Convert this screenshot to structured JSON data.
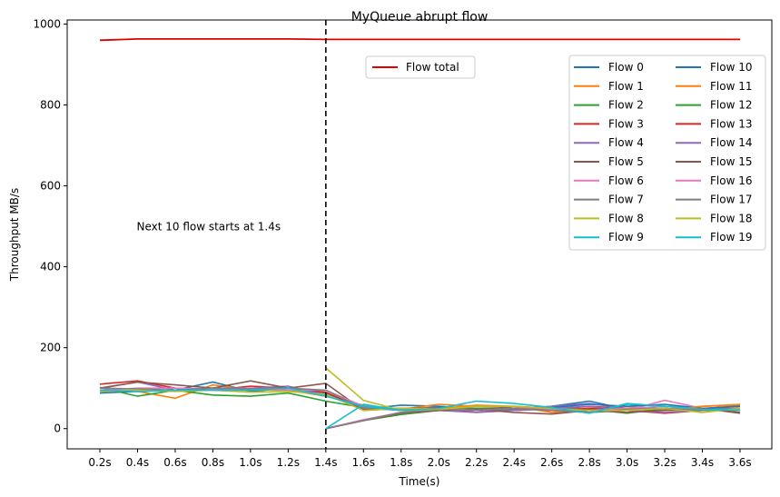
{
  "chart_data": {
    "type": "line",
    "title": "MyQueue abrupt flow",
    "xlabel": "Time(s)",
    "ylabel": "Throughput MB/s",
    "ylim": [
      -50,
      1010
    ],
    "yticks": [
      0,
      200,
      400,
      600,
      800,
      1000
    ],
    "grid": false,
    "categories": [
      "0.2s",
      "0.4s",
      "0.6s",
      "0.8s",
      "1.0s",
      "1.2s",
      "1.4s",
      "1.6s",
      "1.8s",
      "2.0s",
      "2.2s",
      "2.4s",
      "2.6s",
      "2.8s",
      "3.0s",
      "3.2s",
      "3.4s",
      "3.6s"
    ],
    "annotation": {
      "text": "Next 10 flow starts at 1.4s",
      "x": "0.4s",
      "y": 495
    },
    "marker_line": {
      "x": "1.4s",
      "style": "dashed",
      "color": "#000000"
    },
    "total_series": {
      "name": "Flow total",
      "color": "#e00000",
      "values": [
        960,
        963,
        963,
        963,
        963,
        963,
        962,
        962,
        962,
        962,
        962,
        962,
        962,
        962,
        962,
        962,
        962,
        962
      ]
    },
    "total_legend_position": "upper-center",
    "legend_position": "upper-right",
    "series": [
      {
        "name": "Flow 0",
        "color": "#1f77b4",
        "values": [
          88,
          92,
          95,
          115,
          92,
          100,
          88,
          48,
          58,
          55,
          50,
          45,
          55,
          68,
          48,
          55,
          50,
          45
        ]
      },
      {
        "name": "Flow 1",
        "color": "#ff7f0e",
        "values": [
          95,
          92,
          75,
          108,
          96,
          95,
          80,
          58,
          48,
          60,
          55,
          50,
          45,
          50,
          55,
          45,
          55,
          58
        ]
      },
      {
        "name": "Flow 2",
        "color": "#2ca02c",
        "values": [
          102,
          80,
          95,
          83,
          80,
          88,
          68,
          52,
          45,
          50,
          50,
          45,
          50,
          40,
          45,
          50,
          45,
          50
        ]
      },
      {
        "name": "Flow 3",
        "color": "#d62728",
        "values": [
          110,
          118,
          100,
          95,
          105,
          100,
          90,
          48,
          50,
          52,
          45,
          50,
          48,
          55,
          50,
          45,
          50,
          55
        ]
      },
      {
        "name": "Flow 4",
        "color": "#9467bd",
        "values": [
          100,
          115,
          95,
          100,
          100,
          105,
          82,
          52,
          45,
          50,
          40,
          50,
          55,
          62,
          50,
          45,
          50,
          45
        ]
      },
      {
        "name": "Flow 5",
        "color": "#8c564b",
        "values": [
          100,
          115,
          108,
          100,
          118,
          100,
          112,
          45,
          50,
          48,
          45,
          55,
          50,
          45,
          50,
          45,
          50,
          40
        ]
      },
      {
        "name": "Flow 6",
        "color": "#e377c2",
        "values": [
          95,
          100,
          100,
          98,
          100,
          95,
          95,
          55,
          45,
          50,
          50,
          45,
          48,
          50,
          45,
          70,
          50,
          45
        ]
      },
      {
        "name": "Flow 7",
        "color": "#7f7f7f",
        "values": [
          100,
          98,
          95,
          100,
          98,
          100,
          95,
          50,
          50,
          45,
          50,
          50,
          45,
          50,
          50,
          45,
          50,
          50
        ]
      },
      {
        "name": "Flow 8",
        "color": "#bcbd22",
        "values": [
          92,
          95,
          92,
          95,
          90,
          92,
          85,
          45,
          50,
          50,
          45,
          50,
          48,
          45,
          50,
          45,
          45,
          50
        ]
      },
      {
        "name": "Flow 9",
        "color": "#17becf",
        "values": [
          95,
          92,
          95,
          95,
          95,
          100,
          80,
          55,
          45,
          50,
          48,
          50,
          45,
          40,
          60,
          55,
          50,
          45
        ]
      },
      {
        "name": "Flow 10",
        "color": "#1f77b4",
        "values": [
          0,
          0,
          0,
          0,
          0,
          0,
          0,
          20,
          38,
          45,
          50,
          48,
          52,
          60,
          55,
          60,
          50,
          55
        ]
      },
      {
        "name": "Flow 11",
        "color": "#ff7f0e",
        "values": [
          0,
          0,
          0,
          0,
          0,
          0,
          0,
          20,
          40,
          50,
          58,
          55,
          40,
          45,
          50,
          45,
          55,
          60
        ]
      },
      {
        "name": "Flow 12",
        "color": "#2ca02c",
        "values": [
          0,
          0,
          0,
          0,
          0,
          0,
          0,
          20,
          35,
          45,
          50,
          45,
          50,
          48,
          38,
          50,
          45,
          50
        ]
      },
      {
        "name": "Flow 13",
        "color": "#d62728",
        "values": [
          0,
          0,
          0,
          0,
          0,
          0,
          0,
          20,
          40,
          45,
          45,
          50,
          45,
          50,
          45,
          38,
          45,
          50
        ]
      },
      {
        "name": "Flow 14",
        "color": "#9467bd",
        "values": [
          0,
          0,
          0,
          0,
          0,
          0,
          0,
          20,
          40,
          45,
          40,
          45,
          50,
          55,
          45,
          40,
          45,
          48
        ]
      },
      {
        "name": "Flow 15",
        "color": "#8c564b",
        "values": [
          0,
          0,
          0,
          0,
          0,
          0,
          0,
          20,
          38,
          45,
          48,
          40,
          36,
          45,
          40,
          45,
          50,
          38
        ]
      },
      {
        "name": "Flow 16",
        "color": "#e377c2",
        "values": [
          0,
          0,
          0,
          0,
          0,
          0,
          0,
          22,
          40,
          50,
          45,
          50,
          48,
          45,
          50,
          55,
          45,
          50
        ]
      },
      {
        "name": "Flow 17",
        "color": "#7f7f7f",
        "values": [
          0,
          0,
          0,
          0,
          0,
          0,
          0,
          20,
          40,
          48,
          45,
          50,
          45,
          40,
          48,
          50,
          45,
          50
        ]
      },
      {
        "name": "Flow 18",
        "color": "#bcbd22",
        "values": [
          0,
          0,
          0,
          0,
          0,
          0,
          150,
          70,
          45,
          48,
          55,
          55,
          50,
          45,
          45,
          50,
          40,
          50
        ]
      },
      {
        "name": "Flow 19",
        "color": "#17becf",
        "values": [
          0,
          0,
          0,
          0,
          0,
          0,
          0,
          60,
          45,
          50,
          68,
          62,
          52,
          38,
          62,
          55,
          48,
          45
        ]
      }
    ]
  }
}
